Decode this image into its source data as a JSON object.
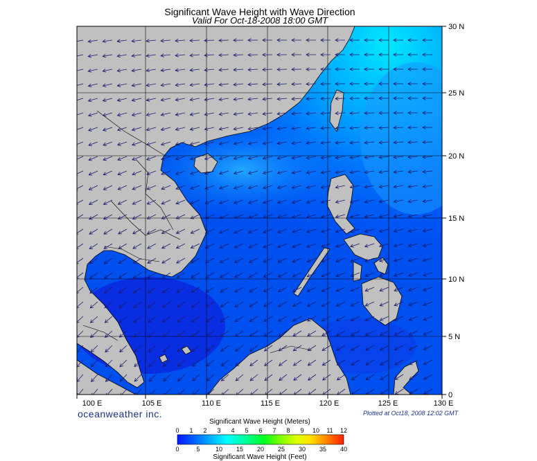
{
  "title": "Significant Wave Height with Wave Direction",
  "subtitle": "Valid For Oct-18-2008 18:00 GMT",
  "brand": "oceanweather inc.",
  "plotted_at": "Plotted at Oct18, 2008 12:02 GMT",
  "axes": {
    "lon_labels": [
      "100 E",
      "105 E",
      "110 E",
      "115 E",
      "120 E",
      "125 E",
      "130 E"
    ],
    "lat_labels": [
      "30 N",
      "25 N",
      "20 N",
      "15 N",
      "10 N",
      "5 N",
      "0"
    ],
    "lon_range": [
      99,
      130
    ],
    "lat_range": [
      0,
      30
    ]
  },
  "legend": {
    "title_meters": "Significant Wave Height (Meters)",
    "title_feet": "Significant Wave Height (Feet)",
    "meters_ticks": [
      "0",
      "1",
      "2",
      "3",
      "4",
      "5",
      "6",
      "7",
      "8",
      "9",
      "10",
      "11",
      "12"
    ],
    "feet_ticks": [
      "0",
      "5",
      "10",
      "15",
      "20",
      "25",
      "30",
      "35",
      "40"
    ],
    "colors": [
      "#0018ff",
      "#0060ff",
      "#00b0ff",
      "#00ffff",
      "#00ffc0",
      "#00ff40",
      "#40ff00",
      "#c0ff00",
      "#ffff00",
      "#ffc000",
      "#ff7000",
      "#ff2000"
    ]
  },
  "colors": {
    "land": "#c0c0c0",
    "arrow": "#1a1a6e",
    "brand": "#1b2f8a"
  }
}
